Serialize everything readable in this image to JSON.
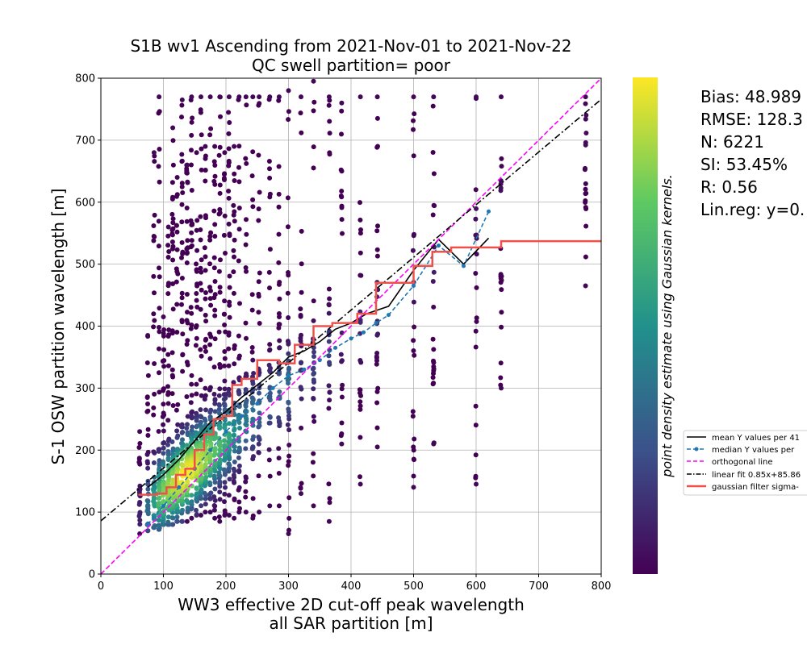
{
  "chart_data": {
    "type": "scatter",
    "title": [
      "S1B wv1 Ascending from 2021-Nov-01 to 2021-Nov-22",
      "QC swell partition= poor"
    ],
    "xlabel": [
      "WW3 effective 2D cut-off peak wavelength",
      "all SAR partition [m]"
    ],
    "ylabel": "S-1 OSW partition wavelength [m]",
    "xlim": [
      0,
      800
    ],
    "ylim": [
      0,
      800
    ],
    "xticks": [
      "0",
      "100",
      "200",
      "300",
      "400",
      "500",
      "600",
      "700",
      "800"
    ],
    "yticks": [
      "0",
      "100",
      "200",
      "300",
      "400",
      "500",
      "600",
      "700",
      "800"
    ],
    "grid": true,
    "colorbar_label": "point density estimate using Gaussian kernels.",
    "colormap": [
      "#440154",
      "#3b528b",
      "#21918c",
      "#5ec962",
      "#fde725"
    ],
    "stats": [
      "Bias: 48.989",
      "RMSE: 128.3",
      "N: 6221",
      "SI: 53.45%",
      "R: 0.56",
      "Lin.reg: y=0."
    ],
    "legend_position": "right, outside plot",
    "series": [
      {
        "name": "mean Y values per 41",
        "style": "line",
        "color": "#000000",
        "x": [
          75,
          100,
          125,
          150,
          175,
          200,
          225,
          250,
          275,
          300,
          325,
          350,
          375,
          400,
          425,
          460,
          500,
          540,
          580,
          620
        ],
        "y": [
          140,
          160,
          185,
          215,
          245,
          262,
          285,
          305,
          325,
          350,
          360,
          375,
          395,
          405,
          420,
          432,
          490,
          540,
          500,
          542
        ]
      },
      {
        "name": "median Y values per",
        "style": "dashed-marker",
        "color": "#1f77b4",
        "x": [
          75,
          100,
          125,
          150,
          175,
          200,
          225,
          250,
          275,
          300,
          325,
          350,
          375,
          400,
          420,
          440,
          460,
          500,
          540,
          580,
          620
        ],
        "y": [
          80,
          110,
          140,
          170,
          200,
          230,
          255,
          275,
          300,
          320,
          330,
          345,
          365,
          380,
          390,
          405,
          418,
          465,
          530,
          497,
          585
        ]
      },
      {
        "name": "orthogonal line",
        "style": "dashed",
        "color": "#ff00ff",
        "x": [
          0,
          800
        ],
        "y": [
          0,
          800
        ]
      },
      {
        "name": "linear fit 0.85x+85.86",
        "style": "dashdot",
        "color": "#000000",
        "x": [
          0,
          800
        ],
        "y": [
          85.86,
          765.86
        ]
      },
      {
        "name": "gaussian filter sigma-",
        "style": "step",
        "color": "#f0504a",
        "x": [
          60,
          90,
          105,
          120,
          135,
          150,
          165,
          180,
          195,
          210,
          225,
          250,
          285,
          310,
          340,
          370,
          410,
          440,
          500,
          530,
          560,
          640,
          800
        ],
        "y": [
          128,
          130,
          140,
          160,
          170,
          200,
          225,
          250,
          255,
          305,
          315,
          345,
          340,
          370,
          400,
          405,
          420,
          470,
          497,
          520,
          527,
          537,
          538
        ]
      }
    ],
    "scatter_columns": [
      {
        "x": 62,
        "ymin": 65,
        "ymax": 230,
        "peak": 0.1
      },
      {
        "x": 75,
        "ymin": 70,
        "ymax": 385,
        "peak": 0.35
      },
      {
        "x": 85,
        "ymin": 75,
        "ymax": 680,
        "peak": 0.55
      },
      {
        "x": 93,
        "ymin": 72,
        "ymax": 770,
        "peak": 0.7
      },
      {
        "x": 100,
        "ymin": 80,
        "ymax": 415,
        "peak": 0.8
      },
      {
        "x": 108,
        "ymin": 80,
        "ymax": 560,
        "peak": 0.85
      },
      {
        "x": 115,
        "ymin": 80,
        "ymax": 720,
        "peak": 0.9
      },
      {
        "x": 122,
        "ymin": 85,
        "ymax": 640,
        "peak": 0.95
      },
      {
        "x": 130,
        "ymin": 85,
        "ymax": 765,
        "peak": 1.0
      },
      {
        "x": 138,
        "ymin": 85,
        "ymax": 660,
        "peak": 1.0
      },
      {
        "x": 145,
        "ymin": 90,
        "ymax": 770,
        "peak": 0.98
      },
      {
        "x": 153,
        "ymin": 95,
        "ymax": 680,
        "peak": 0.95
      },
      {
        "x": 160,
        "ymin": 95,
        "ymax": 770,
        "peak": 0.9
      },
      {
        "x": 167,
        "ymin": 100,
        "ymax": 690,
        "peak": 0.85
      },
      {
        "x": 175,
        "ymin": 100,
        "ymax": 770,
        "peak": 0.8
      },
      {
        "x": 182,
        "ymin": 90,
        "ymax": 690,
        "peak": 0.72
      },
      {
        "x": 190,
        "ymin": 85,
        "ymax": 770,
        "peak": 0.68
      },
      {
        "x": 198,
        "ymin": 95,
        "ymax": 680,
        "peak": 0.62
      },
      {
        "x": 205,
        "ymin": 95,
        "ymax": 770,
        "peak": 0.58
      },
      {
        "x": 213,
        "ymin": 90,
        "ymax": 690,
        "peak": 0.5
      },
      {
        "x": 221,
        "ymin": 100,
        "ymax": 770,
        "peak": 0.45
      },
      {
        "x": 232,
        "ymin": 100,
        "ymax": 770,
        "peak": 0.4
      },
      {
        "x": 243,
        "ymin": 90,
        "ymax": 770,
        "peak": 0.38
      },
      {
        "x": 253,
        "ymin": 100,
        "ymax": 770,
        "peak": 0.32
      },
      {
        "x": 270,
        "ymin": 110,
        "ymax": 770,
        "peak": 0.28
      },
      {
        "x": 285,
        "ymin": 110,
        "ymax": 770,
        "peak": 0.3
      },
      {
        "x": 300,
        "ymin": 65,
        "ymax": 780,
        "peak": 0.35
      },
      {
        "x": 320,
        "ymin": 130,
        "ymax": 770,
        "peak": 0.15
      },
      {
        "x": 340,
        "ymin": 110,
        "ymax": 795,
        "peak": 0.2
      },
      {
        "x": 365,
        "ymin": 85,
        "ymax": 770,
        "peak": 0.2
      },
      {
        "x": 385,
        "ymin": 210,
        "ymax": 760,
        "peak": 0.08
      },
      {
        "x": 415,
        "ymin": 145,
        "ymax": 770,
        "peak": 0.12
      },
      {
        "x": 442,
        "ymin": 205,
        "ymax": 770,
        "peak": 0.12
      },
      {
        "x": 500,
        "ymin": 140,
        "ymax": 770,
        "peak": 0.08
      },
      {
        "x": 532,
        "ymin": 210,
        "ymax": 770,
        "peak": 0.1
      },
      {
        "x": 600,
        "ymin": 145,
        "ymax": 770,
        "peak": 0.05
      },
      {
        "x": 640,
        "ymin": 300,
        "ymax": 770,
        "peak": 0.05
      },
      {
        "x": 775,
        "ymin": 465,
        "ymax": 770,
        "peak": 0.03
      }
    ]
  }
}
